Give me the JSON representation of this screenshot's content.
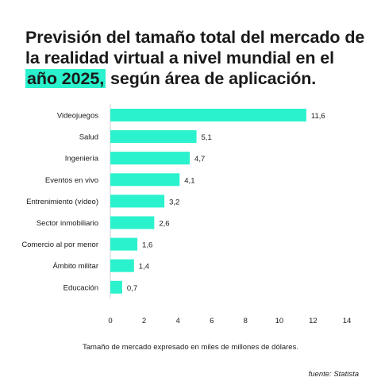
{
  "title": {
    "before": "Previsión del tamaño total del mercado de la realidad virtual a nivel mundial en el ",
    "highlight": "año 2025,",
    "after": " según área de aplicación."
  },
  "footnote": "Tamaño de mercado expresado en miles de millones de dólares.",
  "source": "fuente: Statista",
  "colors": {
    "accent": "#2af2cc",
    "text": "#1a1a1a",
    "axis": "#cfcfcf"
  },
  "chart_data": {
    "type": "bar",
    "orientation": "horizontal",
    "categories": [
      "Videojuegos",
      "Salud",
      "Ingeniería",
      "Eventos en vivo",
      "Entrenimiento (vídeo)",
      "Sector inmobiliario",
      "Comercio al por menor",
      "Ámbito militar",
      "Educación"
    ],
    "values": [
      11.6,
      5.1,
      4.7,
      4.1,
      3.2,
      2.6,
      1.6,
      1.4,
      0.7
    ],
    "value_labels": [
      "11,6",
      "5,1",
      "4,7",
      "4,1",
      "3,2",
      "2,6",
      "1,6",
      "1,4",
      "0,7"
    ],
    "xlim": [
      0,
      14
    ],
    "xticks": [
      0,
      2,
      4,
      6,
      8,
      10,
      12,
      14
    ],
    "grid": false,
    "legend": "none",
    "xlabel": "",
    "ylabel": ""
  }
}
